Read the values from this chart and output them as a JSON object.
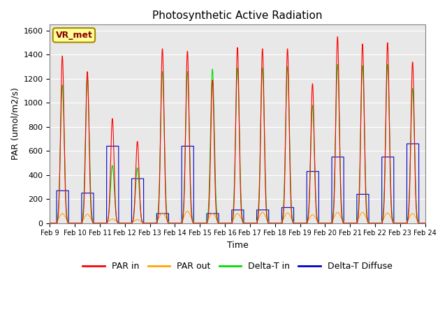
{
  "title": "Photosynthetic Active Radiation",
  "ylabel": "PAR (umol/m2/s)",
  "xlabel": "Time",
  "label_text": "VR_met",
  "ylim": [
    0,
    1650
  ],
  "yticks": [
    0,
    200,
    400,
    600,
    800,
    1000,
    1200,
    1400,
    1600
  ],
  "xtick_labels": [
    "Feb 9",
    "Feb 10",
    "Feb 11",
    "Feb 12",
    "Feb 13",
    "Feb 14",
    "Feb 15",
    "Feb 16",
    "Feb 17",
    "Feb 18",
    "Feb 19",
    "Feb 20",
    "Feb 21",
    "Feb 22",
    "Feb 23",
    "Feb 24"
  ],
  "colors": {
    "PAR_in": "#ff0000",
    "PAR_out": "#ffa500",
    "Delta_T_in": "#00dd00",
    "Delta_T_Diffuse": "#0000cc"
  },
  "background_color": "#e8e8e8",
  "legend": [
    "PAR in",
    "PAR out",
    "Delta-T in",
    "Delta-T Diffuse"
  ],
  "label_box_facecolor": "#ffff99",
  "label_box_edgecolor": "#aa8800",
  "label_text_color": "#880000",
  "peaks_PAR_in": [
    1390,
    1260,
    870,
    680,
    1450,
    1430,
    1190,
    1460,
    1450,
    1450,
    1160,
    1550,
    1490,
    1500,
    1340
  ],
  "peaks_PAR_out": [
    80,
    75,
    35,
    30,
    85,
    100,
    80,
    80,
    90,
    85,
    70,
    90,
    90,
    85,
    80
  ],
  "peaks_dTin": [
    1150,
    1220,
    480,
    460,
    1260,
    1260,
    1280,
    1290,
    1290,
    1300,
    980,
    1320,
    1310,
    1320,
    1120
  ],
  "peaks_dTdiff": [
    270,
    250,
    640,
    370,
    80,
    640,
    80,
    110,
    110,
    130,
    430,
    550,
    240,
    550,
    660
  ],
  "n_days": 15,
  "pts_per_day": 288
}
